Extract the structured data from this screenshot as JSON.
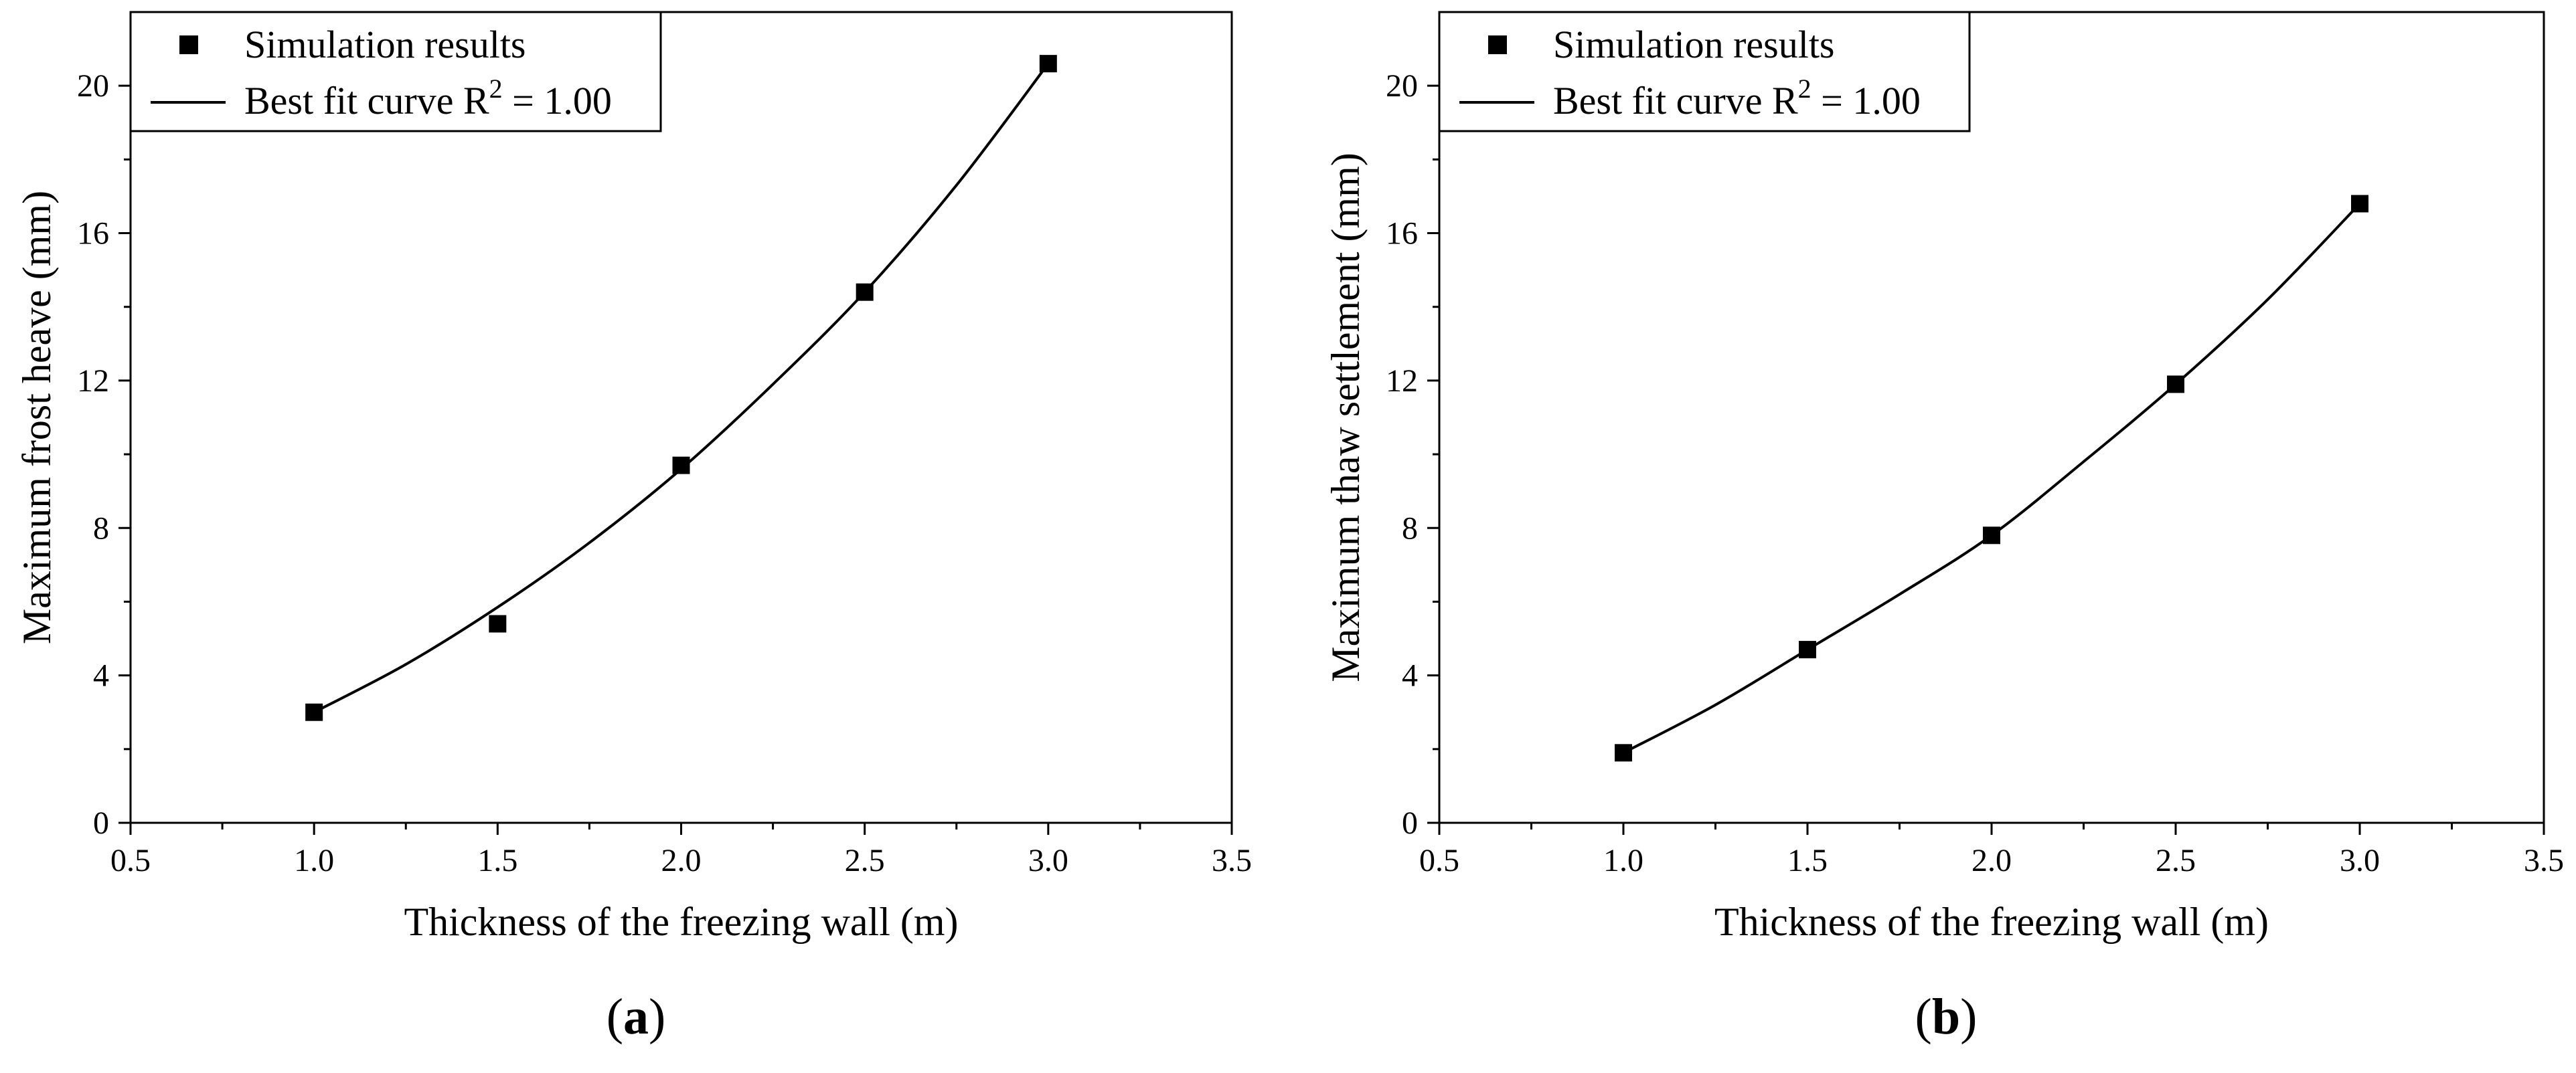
{
  "chart_data": [
    {
      "type": "scatter",
      "panel_label": "a",
      "xlabel": "Thickness of the freezing wall (m)",
      "ylabel": "Maximum frost heave (mm)",
      "xlim": [
        0.5,
        3.5
      ],
      "ylim": [
        0,
        22
      ],
      "xticks": [
        "0.5",
        "1.0",
        "1.5",
        "2.0",
        "2.5",
        "3.0",
        "3.5"
      ],
      "yticks": [
        "0",
        "4",
        "8",
        "12",
        "16",
        "20"
      ],
      "legend_position": "top-left",
      "series": [
        {
          "name": "Simulation results",
          "kind": "markers",
          "x": [
            1.0,
            1.5,
            2.0,
            2.5,
            3.0
          ],
          "y": [
            3.0,
            5.4,
            9.7,
            14.4,
            20.6
          ]
        },
        {
          "name": "Best fit curve R",
          "suffix": " = 1.00",
          "superscript": "2",
          "kind": "line",
          "x": [
            1.0,
            1.25,
            1.5,
            1.75,
            2.0,
            2.25,
            2.5,
            2.75,
            3.0
          ],
          "y": [
            3.0,
            4.3,
            5.85,
            7.6,
            9.6,
            11.9,
            14.4,
            17.3,
            20.6
          ]
        }
      ]
    },
    {
      "type": "scatter",
      "panel_label": "b",
      "xlabel": "Thickness of the freezing wall (m)",
      "ylabel": "Maximum thaw settlement (mm)",
      "xlim": [
        0.5,
        3.5
      ],
      "ylim": [
        0,
        22
      ],
      "xticks": [
        "0.5",
        "1.0",
        "1.5",
        "2.0",
        "2.5",
        "3.0",
        "3.5"
      ],
      "yticks": [
        "0",
        "4",
        "8",
        "12",
        "16",
        "20"
      ],
      "legend_position": "top-left",
      "series": [
        {
          "name": "Simulation results",
          "kind": "markers",
          "x": [
            1.0,
            1.5,
            2.0,
            2.5,
            3.0
          ],
          "y": [
            1.9,
            4.7,
            7.8,
            11.9,
            16.8
          ]
        },
        {
          "name": "Best fit curve  R",
          "suffix": " = 1.00",
          "superscript": "2",
          "kind": "line",
          "x": [
            1.0,
            1.25,
            1.5,
            1.75,
            2.0,
            2.25,
            2.5,
            2.75,
            3.0
          ],
          "y": [
            1.9,
            3.2,
            4.7,
            6.2,
            7.8,
            9.8,
            11.9,
            14.2,
            16.8
          ]
        }
      ]
    }
  ]
}
